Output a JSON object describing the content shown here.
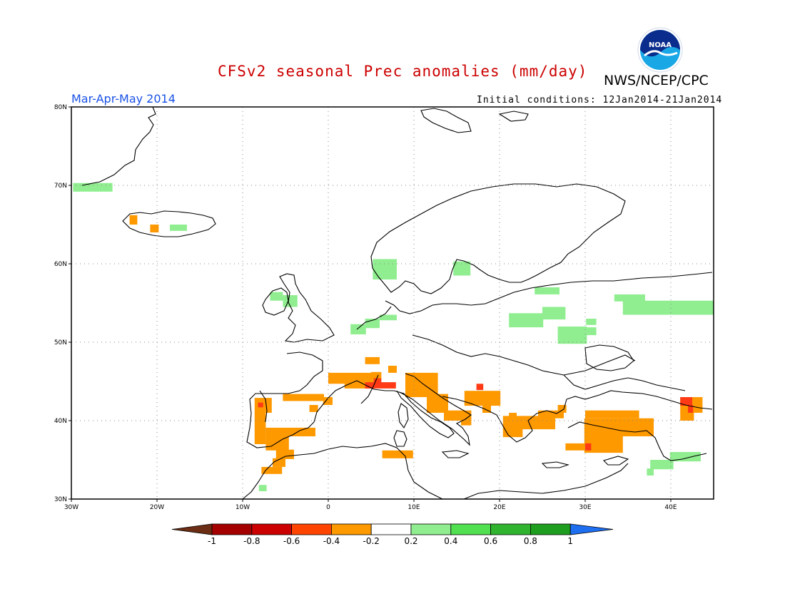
{
  "header": {
    "title": "CFSv2 seasonal Prec anomalies (mm/day)",
    "agency": "NWS/NCEP/CPC",
    "period": "Mar-Apr-May 2014",
    "initial_conditions": "Initial conditions: 12Jan2014-21Jan2014",
    "logo_text": "NOAA"
  },
  "colors": {
    "title": "#cc0000",
    "period": "#1a52e6",
    "grid": "#888888",
    "coast": "#000000"
  },
  "map": {
    "lon_range": [
      -30,
      45
    ],
    "lat_range": [
      30,
      80
    ],
    "lat_ticks": [
      "80N",
      "70N",
      "60N",
      "50N",
      "40N",
      "30N"
    ],
    "lon_ticks": [
      "30W",
      "20W",
      "10W",
      "0",
      "10E",
      "20E",
      "30E",
      "40E"
    ],
    "anomaly_regions": [
      {
        "cat": "g1",
        "lon0": -29.8,
        "lat0": 69.2,
        "lon1": -25.2,
        "lat1": 70.3
      },
      {
        "cat": "o1",
        "lon0": -23.2,
        "lat0": 65.0,
        "lon1": -22.3,
        "lat1": 66.2
      },
      {
        "cat": "o1",
        "lon0": -20.8,
        "lat0": 64.0,
        "lon1": -19.8,
        "lat1": 65.0
      },
      {
        "cat": "g1",
        "lon0": -18.5,
        "lat0": 64.2,
        "lon1": -16.5,
        "lat1": 65.0
      },
      {
        "cat": "g1",
        "lon0": -6.8,
        "lat0": 55.3,
        "lon1": -5.3,
        "lat1": 56.4
      },
      {
        "cat": "g1",
        "lon0": -5.3,
        "lat0": 54.5,
        "lon1": -3.6,
        "lat1": 56.0
      },
      {
        "cat": "g1",
        "lon0": 5.2,
        "lat0": 58.0,
        "lon1": 8.0,
        "lat1": 60.6
      },
      {
        "cat": "g1",
        "lon0": 14.6,
        "lat0": 58.5,
        "lon1": 16.6,
        "lat1": 60.3
      },
      {
        "cat": "g1",
        "lon0": 4.3,
        "lat0": 51.8,
        "lon1": 6.0,
        "lat1": 53.0
      },
      {
        "cat": "g1",
        "lon0": 2.6,
        "lat0": 51.0,
        "lon1": 4.4,
        "lat1": 52.3
      },
      {
        "cat": "g1",
        "lon0": 6.0,
        "lat0": 52.8,
        "lon1": 8.0,
        "lat1": 53.5
      },
      {
        "cat": "g1",
        "lon0": 24.1,
        "lat0": 56.1,
        "lon1": 27.0,
        "lat1": 57.0
      },
      {
        "cat": "g1",
        "lon0": 21.1,
        "lat0": 51.9,
        "lon1": 25.1,
        "lat1": 53.7
      },
      {
        "cat": "g1",
        "lon0": 25.0,
        "lat0": 52.9,
        "lon1": 27.7,
        "lat1": 54.5
      },
      {
        "cat": "g1",
        "lon0": 26.8,
        "lat0": 49.8,
        "lon1": 30.2,
        "lat1": 52.0
      },
      {
        "cat": "g1",
        "lon0": 30.1,
        "lat0": 50.9,
        "lon1": 31.3,
        "lat1": 51.9
      },
      {
        "cat": "g1",
        "lon0": 30.1,
        "lat0": 52.2,
        "lon1": 31.3,
        "lat1": 53.0
      },
      {
        "cat": "g1",
        "lon0": 33.4,
        "lat0": 55.2,
        "lon1": 37.0,
        "lat1": 56.1
      },
      {
        "cat": "g1",
        "lon0": 34.4,
        "lat0": 53.5,
        "lon1": 45.0,
        "lat1": 55.3
      },
      {
        "cat": "g1",
        "lon0": 39.9,
        "lat0": 34.8,
        "lon1": 43.5,
        "lat1": 36.0
      },
      {
        "cat": "g1",
        "lon0": 37.6,
        "lat0": 33.8,
        "lon1": 40.3,
        "lat1": 35.0
      },
      {
        "cat": "g1",
        "lon0": 37.2,
        "lat0": 33.0,
        "lon1": 38.0,
        "lat1": 33.9
      },
      {
        "cat": "g1",
        "lon0": -8.1,
        "lat0": 31.0,
        "lon1": -7.2,
        "lat1": 31.8
      },
      {
        "cat": "o1",
        "lon0": 4.3,
        "lat0": 47.2,
        "lon1": 6.0,
        "lat1": 48.1
      },
      {
        "cat": "o1",
        "lon0": 0.0,
        "lat0": 44.7,
        "lon1": 5.0,
        "lat1": 46.1
      },
      {
        "cat": "o1",
        "lon0": 1.9,
        "lat0": 44.1,
        "lon1": 5.3,
        "lat1": 45.2
      },
      {
        "cat": "o1",
        "lon0": 5.0,
        "lat0": 45.2,
        "lon1": 6.2,
        "lat1": 46.2
      },
      {
        "cat": "o1",
        "lon0": 7.0,
        "lat0": 46.1,
        "lon1": 8.0,
        "lat1": 47.0
      },
      {
        "cat": "o1",
        "lon0": 9.0,
        "lat0": 43.0,
        "lon1": 12.8,
        "lat1": 46.1
      },
      {
        "cat": "o1",
        "lon0": 11.5,
        "lat0": 41.0,
        "lon1": 14.0,
        "lat1": 43.4
      },
      {
        "cat": "o1",
        "lon0": 13.5,
        "lat0": 40.0,
        "lon1": 16.7,
        "lat1": 41.3
      },
      {
        "cat": "o1",
        "lon0": 15.5,
        "lat0": 39.4,
        "lon1": 16.7,
        "lat1": 40.5
      },
      {
        "cat": "o1",
        "lon0": 15.9,
        "lat0": 41.9,
        "lon1": 20.1,
        "lat1": 43.8
      },
      {
        "cat": "o1",
        "lon0": 18.0,
        "lat0": 41.0,
        "lon1": 19.0,
        "lat1": 42.0
      },
      {
        "cat": "o1",
        "lon0": -8.6,
        "lat0": 41.0,
        "lon1": -6.6,
        "lat1": 42.9
      },
      {
        "cat": "o1",
        "lon0": -5.3,
        "lat0": 42.5,
        "lon1": -0.5,
        "lat1": 43.4
      },
      {
        "cat": "o1",
        "lon0": -8.6,
        "lat0": 37.0,
        "lon1": -7.3,
        "lat1": 41.1
      },
      {
        "cat": "o1",
        "lon0": -7.3,
        "lat0": 38.0,
        "lon1": -1.5,
        "lat1": 39.1
      },
      {
        "cat": "o1",
        "lon0": -7.3,
        "lat0": 36.2,
        "lon1": -4.6,
        "lat1": 38.2
      },
      {
        "cat": "o1",
        "lon0": -6.1,
        "lat0": 35.1,
        "lon1": -4.0,
        "lat1": 36.3
      },
      {
        "cat": "o1",
        "lon0": -7.8,
        "lat0": 33.2,
        "lon1": -5.4,
        "lat1": 34.1
      },
      {
        "cat": "o1",
        "lon0": -6.5,
        "lat0": 34.1,
        "lon1": -5.0,
        "lat1": 35.2
      },
      {
        "cat": "o1",
        "lon0": -2.2,
        "lat0": 41.1,
        "lon1": -1.2,
        "lat1": 42.0
      },
      {
        "cat": "o1",
        "lon0": -0.6,
        "lat0": 42.0,
        "lon1": 0.5,
        "lat1": 43.0
      },
      {
        "cat": "o1",
        "lon0": 6.3,
        "lat0": 35.2,
        "lon1": 9.9,
        "lat1": 36.2
      },
      {
        "cat": "o1",
        "lon0": 20.4,
        "lat0": 38.9,
        "lon1": 26.5,
        "lat1": 40.6
      },
      {
        "cat": "o1",
        "lon0": 20.4,
        "lat0": 37.9,
        "lon1": 22.7,
        "lat1": 39.0
      },
      {
        "cat": "o1",
        "lon0": 21.1,
        "lat0": 40.4,
        "lon1": 22.0,
        "lat1": 41.0
      },
      {
        "cat": "o1",
        "lon0": 24.5,
        "lat0": 40.3,
        "lon1": 27.5,
        "lat1": 41.3
      },
      {
        "cat": "o1",
        "lon0": 26.8,
        "lat0": 41.0,
        "lon1": 27.8,
        "lat1": 42.0
      },
      {
        "cat": "o1",
        "lon0": 27.7,
        "lat0": 36.2,
        "lon1": 30.2,
        "lat1": 37.1
      },
      {
        "cat": "o1",
        "lon0": 29.9,
        "lat0": 35.9,
        "lon1": 34.4,
        "lat1": 40.3
      },
      {
        "cat": "o1",
        "lon0": 30.0,
        "lat0": 40.3,
        "lon1": 36.3,
        "lat1": 41.3
      },
      {
        "cat": "o1",
        "lon0": 33.9,
        "lat0": 38.0,
        "lon1": 38.0,
        "lat1": 40.3
      },
      {
        "cat": "o1",
        "lon0": 41.1,
        "lat0": 41.0,
        "lon1": 43.7,
        "lat1": 43.0
      },
      {
        "cat": "o1",
        "lon0": 41.1,
        "lat0": 40.0,
        "lon1": 42.7,
        "lat1": 41.1
      },
      {
        "cat": "r1",
        "lon0": 4.3,
        "lat0": 44.1,
        "lon1": 7.9,
        "lat1": 44.9
      },
      {
        "cat": "r1",
        "lon0": 5.3,
        "lat0": 44.7,
        "lon1": 6.2,
        "lat1": 45.4
      },
      {
        "cat": "r1",
        "lon0": 17.3,
        "lat0": 43.9,
        "lon1": 18.1,
        "lat1": 44.7
      },
      {
        "cat": "r1",
        "lon0": -8.2,
        "lat0": 41.7,
        "lon1": -7.6,
        "lat1": 42.3
      },
      {
        "cat": "r1",
        "lon0": 30.0,
        "lat0": 36.2,
        "lon1": 30.7,
        "lat1": 37.1
      },
      {
        "cat": "r1",
        "lon0": 41.1,
        "lat0": 41.9,
        "lon1": 42.5,
        "lat1": 43.0
      },
      {
        "cat": "r1",
        "lon0": 42.0,
        "lat0": 41.0,
        "lon1": 42.6,
        "lat1": 42.0
      }
    ]
  },
  "legend": {
    "labels": [
      "-1",
      "-0.8",
      "-0.6",
      "-0.4",
      "-0.2",
      "0.2",
      "0.4",
      "0.6",
      "0.8",
      "1"
    ],
    "colors": [
      "#6b2d14",
      "#a50000",
      "#cc0000",
      "#ff4400",
      "#ff9900",
      "#ffffff",
      "#90ee90",
      "#50e050",
      "#30b430",
      "#1e9e1e",
      "#1e6ef0"
    ]
  }
}
